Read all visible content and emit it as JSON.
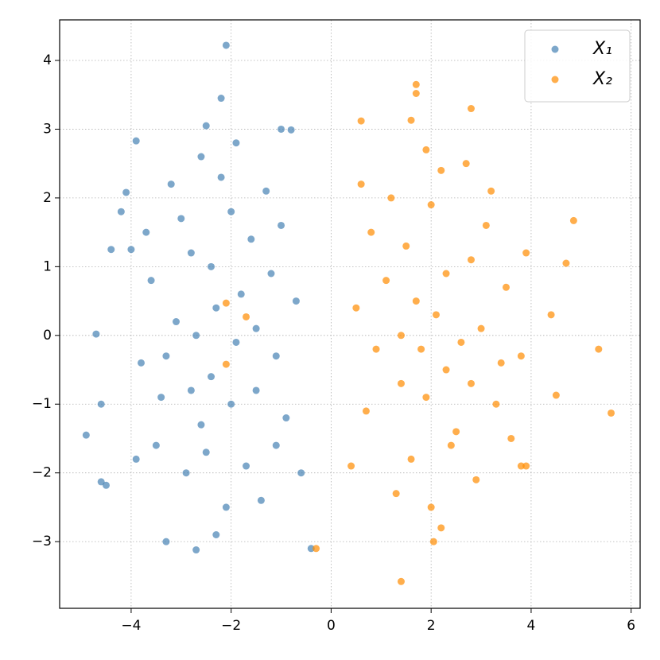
{
  "chart_data": {
    "type": "scatter",
    "xlim": [
      -5.43,
      6.18
    ],
    "ylim": [
      -3.97,
      4.59
    ],
    "xticks": [
      {
        "value": -4,
        "label": "−4"
      },
      {
        "value": -2,
        "label": "−2"
      },
      0,
      2,
      4,
      6
    ],
    "yticks": [
      {
        "value": -3,
        "label": "−3"
      },
      {
        "value": -2,
        "label": "−2"
      },
      {
        "value": -1,
        "label": "−1"
      },
      0,
      1,
      2,
      3,
      4
    ],
    "grid": true,
    "legend": "upper right",
    "series": [
      {
        "name": "X₁",
        "color": "#4682b4",
        "x": [
          -2.1,
          -2.2,
          -3.9,
          -4.9,
          -4.6,
          -4.5,
          -2.7,
          -3.3,
          -0.4,
          -4.1,
          -4.2,
          -4.7,
          -4.6,
          -2.5,
          -1.0,
          -0.8,
          -3.9,
          -4.4,
          -4.0,
          -2.3,
          -1.5,
          -2.8,
          -1.9,
          -2.6,
          -1.2,
          -3.1,
          -2.0,
          -1.7,
          -2.4,
          -3.4,
          -1.1,
          -2.2,
          -2.9,
          -1.6,
          -3.6,
          -2.1,
          -1.3,
          -2.7,
          -0.9,
          -3.0,
          -1.8,
          -2.5,
          -3.3,
          -1.4,
          -2.0,
          -0.7,
          -3.8,
          -2.6,
          -1.0,
          -2.3,
          -3.2,
          -1.5,
          -2.8,
          -0.6,
          -3.5,
          -1.9,
          -2.4,
          -1.1,
          -3.7
        ],
        "y": [
          4.22,
          3.45,
          2.83,
          -1.45,
          -2.13,
          -2.18,
          -3.12,
          -3.0,
          -3.1,
          2.08,
          1.8,
          0.02,
          -1.0,
          3.05,
          3.0,
          2.99,
          -1.8,
          1.25,
          1.25,
          0.4,
          -0.8,
          1.2,
          -0.1,
          -1.3,
          0.9,
          0.2,
          1.8,
          -1.9,
          -0.6,
          -0.9,
          -0.3,
          2.3,
          -2.0,
          1.4,
          0.8,
          -2.5,
          2.1,
          0.0,
          -1.2,
          1.7,
          0.6,
          -1.7,
          -0.3,
          -2.4,
          -1.0,
          0.5,
          -0.4,
          2.6,
          1.6,
          -2.9,
          2.2,
          0.1,
          -0.8,
          -2.0,
          -1.6,
          2.8,
          1.0,
          -1.6,
          1.5
        ]
      },
      {
        "name": "X₂",
        "color": "#ff8c00",
        "x": [
          1.4,
          5.6,
          5.35,
          4.85,
          4.7,
          1.7,
          1.7,
          2.8,
          1.6,
          0.6,
          4.5,
          4.4,
          2.05,
          -2.1,
          -2.1,
          -1.7,
          -0.3,
          3.9,
          3.8,
          2.1,
          1.4,
          2.8,
          1.8,
          2.5,
          1.1,
          3.0,
          2.0,
          1.6,
          2.3,
          3.3,
          0.9,
          2.2,
          2.9,
          1.5,
          3.5,
          2.0,
          1.2,
          2.6,
          0.7,
          3.1,
          1.7,
          2.4,
          3.4,
          1.3,
          1.9,
          0.5,
          3.8,
          2.7,
          0.8,
          2.2,
          3.2,
          1.4,
          2.8,
          0.4,
          3.6,
          1.9,
          2.3,
          0.6,
          3.9
        ],
        "y": [
          -3.58,
          -1.13,
          -0.2,
          1.67,
          1.05,
          3.65,
          3.52,
          3.3,
          3.13,
          3.12,
          -0.87,
          0.3,
          -3.0,
          -0.42,
          0.47,
          0.27,
          -3.1,
          -1.9,
          -1.9,
          0.3,
          -0.7,
          1.1,
          -0.2,
          -1.4,
          0.8,
          0.1,
          1.9,
          -1.8,
          -0.5,
          -1.0,
          -0.2,
          2.4,
          -2.1,
          1.3,
          0.7,
          -2.5,
          2.0,
          -0.1,
          -1.1,
          1.6,
          0.5,
          -1.6,
          -0.4,
          -2.3,
          -0.9,
          0.4,
          -0.3,
          2.5,
          1.5,
          -2.8,
          2.1,
          0.0,
          -0.7,
          -1.9,
          -1.5,
          2.7,
          0.9,
          2.2,
          1.2
        ]
      }
    ]
  }
}
